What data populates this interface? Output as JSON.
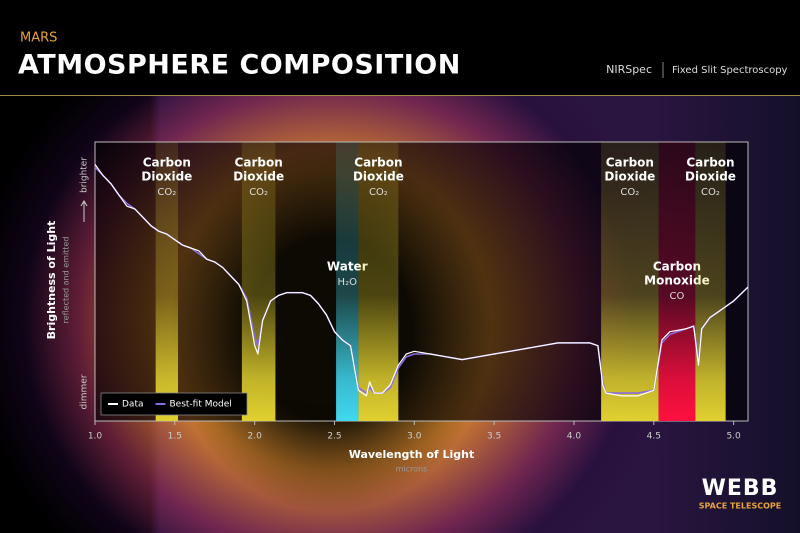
{
  "header": {
    "subtitle": "MARS",
    "title": "ATMOSPHERE COMPOSITION",
    "instrument": "NIRSpec",
    "mode": "Fixed Slit Spectroscopy"
  },
  "logo": {
    "name": "WEBB",
    "tagline": "SPACE TELESCOPE"
  },
  "chart_data": {
    "type": "line",
    "x_label": "Wavelength of Light",
    "x_unit": "microns",
    "y_label": "Brightness of Light",
    "y_sublabel": "reflected and emitted",
    "y_high": "brighter",
    "y_low": "dimmer",
    "xlim": [
      1.0,
      5.09
    ],
    "ylim": [
      0,
      1
    ],
    "xticks": [
      {
        "value": 1,
        "label": "1.0"
      },
      1.5,
      {
        "value": 2,
        "label": "2.0"
      },
      2.5,
      {
        "value": 3,
        "label": "3.0"
      },
      3.5,
      {
        "value": 4,
        "label": "4.0"
      },
      4.5,
      {
        "value": 5,
        "label": "5.0"
      }
    ],
    "x": [
      1.0,
      1.05,
      1.1,
      1.15,
      1.2,
      1.25,
      1.3,
      1.35,
      1.4,
      1.45,
      1.5,
      1.55,
      1.6,
      1.65,
      1.7,
      1.75,
      1.8,
      1.85,
      1.9,
      1.95,
      2.0,
      2.02,
      2.05,
      2.1,
      2.15,
      2.2,
      2.25,
      2.3,
      2.35,
      2.4,
      2.45,
      2.5,
      2.55,
      2.6,
      2.65,
      2.7,
      2.72,
      2.75,
      2.8,
      2.85,
      2.9,
      2.95,
      3.0,
      3.1,
      3.2,
      3.3,
      3.4,
      3.5,
      3.6,
      3.7,
      3.8,
      3.9,
      4.0,
      4.1,
      4.15,
      4.18,
      4.2,
      4.3,
      4.4,
      4.5,
      4.55,
      4.6,
      4.7,
      4.75,
      4.78,
      4.8,
      4.85,
      4.9,
      5.0,
      5.09
    ],
    "series": [
      {
        "name": "Best-fit Model",
        "color": "#8a6be0",
        "values": [
          0.91,
          0.88,
          0.85,
          0.81,
          0.78,
          0.76,
          0.73,
          0.7,
          0.68,
          0.67,
          0.65,
          0.63,
          0.62,
          0.6,
          0.58,
          0.57,
          0.55,
          0.52,
          0.49,
          0.44,
          0.3,
          0.27,
          0.36,
          0.43,
          0.45,
          0.46,
          0.46,
          0.46,
          0.45,
          0.42,
          0.38,
          0.32,
          0.29,
          0.27,
          0.12,
          0.1,
          0.12,
          0.1,
          0.1,
          0.12,
          0.19,
          0.23,
          0.24,
          0.24,
          0.23,
          0.22,
          0.23,
          0.24,
          0.25,
          0.26,
          0.27,
          0.28,
          0.28,
          0.28,
          0.27,
          0.14,
          0.1,
          0.1,
          0.1,
          0.11,
          0.28,
          0.31,
          0.33,
          0.34,
          0.22,
          0.33,
          0.37,
          0.39,
          0.43,
          0.48
        ]
      },
      {
        "name": "Data",
        "color": "#ffffff",
        "values": [
          0.92,
          0.88,
          0.85,
          0.81,
          0.77,
          0.76,
          0.73,
          0.7,
          0.68,
          0.67,
          0.65,
          0.63,
          0.62,
          0.61,
          0.58,
          0.57,
          0.55,
          0.52,
          0.49,
          0.43,
          0.27,
          0.24,
          0.36,
          0.43,
          0.45,
          0.46,
          0.46,
          0.46,
          0.45,
          0.42,
          0.38,
          0.32,
          0.29,
          0.27,
          0.11,
          0.09,
          0.14,
          0.1,
          0.1,
          0.13,
          0.2,
          0.24,
          0.25,
          0.24,
          0.23,
          0.22,
          0.23,
          0.24,
          0.25,
          0.26,
          0.27,
          0.28,
          0.28,
          0.28,
          0.27,
          0.13,
          0.1,
          0.09,
          0.09,
          0.11,
          0.29,
          0.32,
          0.33,
          0.34,
          0.2,
          0.33,
          0.37,
          0.39,
          0.43,
          0.48
        ]
      }
    ],
    "regions": [
      {
        "label": [
          "Carbon",
          "Dioxide"
        ],
        "formula": "CO₂",
        "xmin": 1.38,
        "xmax": 1.52,
        "color": "#e0d030"
      },
      {
        "label": [
          "Carbon",
          "Dioxide"
        ],
        "formula": "CO₂",
        "xmin": 1.92,
        "xmax": 2.13,
        "color": "#e0d030"
      },
      {
        "label": [
          "Water"
        ],
        "formula": "H₂O",
        "xmin": 2.51,
        "xmax": 2.65,
        "color": "#40d8f0"
      },
      {
        "label": [
          "Carbon",
          "Dioxide"
        ],
        "formula": "CO₂",
        "xmin": 2.65,
        "xmax": 2.9,
        "color": "#e0d030"
      },
      {
        "label": [
          "Carbon",
          "Dioxide"
        ],
        "formula": "CO₂",
        "xmin": 4.17,
        "xmax": 4.53,
        "color": "#e0d030"
      },
      {
        "label": [
          "Carbon",
          "Monoxide"
        ],
        "formula": "CO",
        "xmin": 4.53,
        "xmax": 4.76,
        "color": "#ff1040"
      },
      {
        "label": [
          "Carbon",
          "Dioxide"
        ],
        "formula": "CO₂",
        "xmin": 4.76,
        "xmax": 4.95,
        "color": "#e0d030"
      }
    ],
    "legend": "lower left"
  }
}
